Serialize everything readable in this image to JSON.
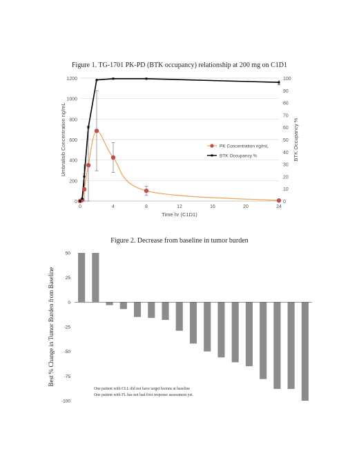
{
  "figure1": {
    "title": "Figure 1. TG-1701 PK-PD (BTK occupancy) relationship at 200 mg on C1D1",
    "chart_data": {
      "type": "line",
      "title": "Figure 1. TG-1701 PK-PD (BTK occupancy) relationship at 200 mg on C1D1",
      "xlabel": "Time hr (C1D1)",
      "ylabel": "Umbralisib Concentration ng/mL",
      "y2label": "BTK Occupancy %",
      "xlim": [
        0,
        24
      ],
      "ylim": [
        0,
        1200
      ],
      "y2lim": [
        0,
        100
      ],
      "xticks": [
        "0",
        "4",
        "8",
        "12",
        "16",
        "20",
        "24"
      ],
      "yticks": [
        "0",
        "200",
        "400",
        "600",
        "800",
        "1000",
        "1200"
      ],
      "y2ticks": [
        "0",
        "10",
        "20",
        "30",
        "40",
        "50",
        "60",
        "70",
        "80",
        "90",
        "100"
      ],
      "legend_position": "right",
      "series": [
        {
          "name": "PK Concentration ng/mL",
          "axis": "left",
          "color": "#c0504d",
          "line_color": "#f0a050",
          "x": [
            0,
            0.25,
            0.5,
            1,
            2,
            4,
            8,
            24
          ],
          "y": [
            0,
            10,
            115,
            350,
            685,
            425,
            100,
            5
          ],
          "err": [
            0,
            10,
            150,
            380,
            390,
            145,
            45,
            5
          ]
        },
        {
          "name": "BTK Occupancy %",
          "axis": "right",
          "color": "#000000",
          "x": [
            0,
            0.25,
            0.5,
            1,
            2,
            4,
            8,
            24
          ],
          "y": [
            0,
            2,
            20,
            60,
            98.5,
            99.5,
            99.5,
            96.5
          ],
          "err": [
            0,
            2,
            10,
            0,
            0,
            0,
            0,
            2
          ]
        }
      ]
    }
  },
  "figure2": {
    "title": "Figure 2. Decrease from baseline in tumor burden",
    "note_lines": [
      "One patient with CLL did not have target lesions at baseline",
      "One patient with FL has not had first response assessment yet."
    ],
    "chart_data": {
      "type": "bar",
      "title": "Figure 2. Decrease from baseline in tumor burden",
      "xlabel": "",
      "ylabel": "Best % Change in Tumor Burden from Baseline",
      "ylim": [
        -100,
        50
      ],
      "yticks": [
        "50",
        "25",
        "0",
        "-25",
        "-50",
        "-75",
        "-100"
      ],
      "bar_color": "#8c8c8c",
      "values": [
        50,
        50,
        -3,
        -7,
        -15,
        -16,
        -18,
        -29,
        -42,
        -50,
        -56,
        -61,
        -65,
        -78,
        -88,
        -88,
        -100
      ]
    }
  }
}
